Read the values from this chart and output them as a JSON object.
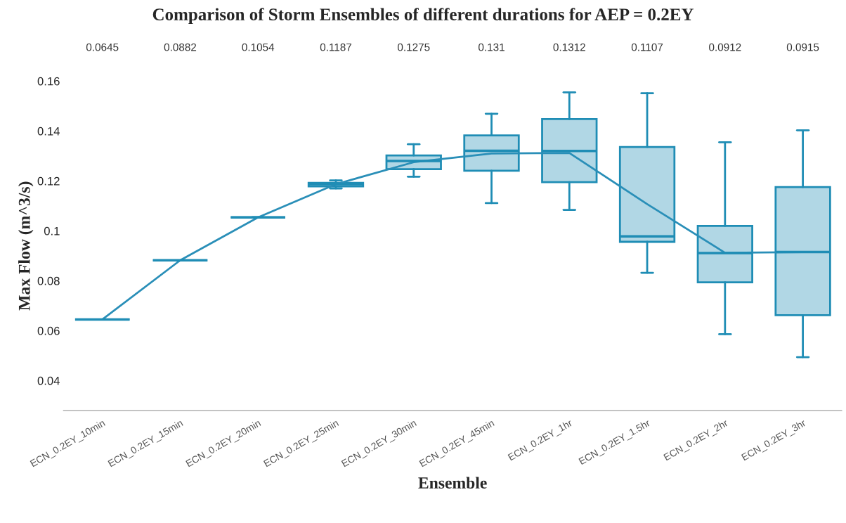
{
  "chart_data": {
    "type": "box",
    "title": "Comparison of Storm Ensembles of different durations for AEP = 0.2EY",
    "xlabel": "Ensemble",
    "ylabel": "Max Flow (m^3/s)",
    "categories": [
      "ECN_0.2EY_10min",
      "ECN_0.2EY_15min",
      "ECN_0.2EY_20min",
      "ECN_0.2EY_25min",
      "ECN_0.2EY_30min",
      "ECN_0.2EY_45min",
      "ECN_0.2EY_1hr",
      "ECN_0.2EY_1.5hr",
      "ECN_0.2EY_2hr",
      "ECN_0.2EY_3hr"
    ],
    "ylim": [
      0.028,
      0.16
    ],
    "yticks": [
      0.04,
      0.06,
      0.08,
      0.1,
      0.12,
      0.14,
      0.16
    ],
    "grid": false,
    "series": [
      {
        "color": "#1f8db5",
        "boxes": [
          {
            "low": 0.0645,
            "q1": 0.0645,
            "median": 0.0645,
            "q3": 0.0645,
            "high": 0.0645
          },
          {
            "low": 0.0882,
            "q1": 0.0882,
            "median": 0.0882,
            "q3": 0.0882,
            "high": 0.0882
          },
          {
            "low": 0.1054,
            "q1": 0.1054,
            "median": 0.1054,
            "q3": 0.1054,
            "high": 0.1054
          },
          {
            "low": 0.117,
            "q1": 0.1178,
            "median": 0.1187,
            "q3": 0.1192,
            "high": 0.1202
          },
          {
            "low": 0.1217,
            "q1": 0.1247,
            "median": 0.128,
            "q3": 0.1302,
            "high": 0.1347
          },
          {
            "low": 0.1111,
            "q1": 0.1241,
            "median": 0.1321,
            "q3": 0.1382,
            "high": 0.1469
          },
          {
            "low": 0.1084,
            "q1": 0.1195,
            "median": 0.132,
            "q3": 0.1448,
            "high": 0.1555
          },
          {
            "low": 0.0832,
            "q1": 0.0956,
            "median": 0.0978,
            "q3": 0.1336,
            "high": 0.1551
          },
          {
            "low": 0.0586,
            "q1": 0.0794,
            "median": 0.0911,
            "q3": 0.102,
            "high": 0.1355
          },
          {
            "low": 0.0494,
            "q1": 0.0662,
            "median": 0.0915,
            "q3": 0.1175,
            "high": 0.1403
          }
        ]
      },
      {
        "type": "line",
        "color": "#2a8fb8",
        "data_labels": true,
        "values": [
          0.0645,
          0.0882,
          0.1054,
          0.1187,
          0.1275,
          0.131,
          0.1312,
          0.1107,
          0.0912,
          0.0915
        ]
      }
    ]
  }
}
